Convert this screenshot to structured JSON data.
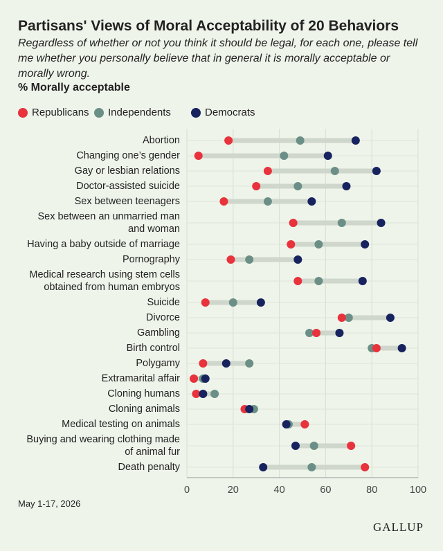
{
  "chart_data": {
    "type": "dot",
    "title": "Partisans' Views of Moral Acceptability of 20 Behaviors",
    "subtitle": "Regardless of whether or not you think it should be legal, for each one, please tell me whether you personally believe that in general it is morally acceptable or morally wrong.",
    "measure": "% Morally acceptable",
    "categories": [
      "Abortion",
      "Changing one’s gender",
      "Gay or lesbian relations",
      "Doctor-assisted suicide",
      "Sex between teenagers",
      "Sex between an unmarried man\nand woman",
      "Having a baby outside of marriage",
      "Pornography",
      "Medical research using stem cells\nobtained from human embryos",
      "Suicide",
      "Divorce",
      "Gambling",
      "Birth control",
      "Polygamy",
      "Extramarital affair",
      "Cloning humans",
      "Cloning animals",
      "Medical testing on animals",
      "Buying and wearing clothing made\nof animal fur",
      "Death penalty"
    ],
    "series": [
      {
        "name": "Republicans",
        "color": "#e8323c",
        "values": [
          18,
          5,
          35,
          30,
          16,
          46,
          45,
          19,
          48,
          8,
          67,
          56,
          82,
          7,
          3,
          4,
          25,
          51,
          71,
          77
        ]
      },
      {
        "name": "Independents",
        "color": "#6b8f86",
        "values": [
          49,
          42,
          64,
          48,
          35,
          67,
          57,
          27,
          57,
          20,
          70,
          53,
          80,
          27,
          7,
          12,
          29,
          44,
          55,
          54
        ]
      },
      {
        "name": "Democrats",
        "color": "#17235e",
        "values": [
          73,
          61,
          82,
          69,
          54,
          84,
          77,
          48,
          76,
          32,
          88,
          66,
          93,
          17,
          8,
          7,
          27,
          43,
          47,
          33
        ]
      }
    ],
    "xlim": [
      0,
      100
    ],
    "xticks": [
      0,
      20,
      40,
      60,
      80,
      100
    ],
    "grid": true,
    "note": "May 1-17, 2026",
    "source": "GALLUP"
  }
}
